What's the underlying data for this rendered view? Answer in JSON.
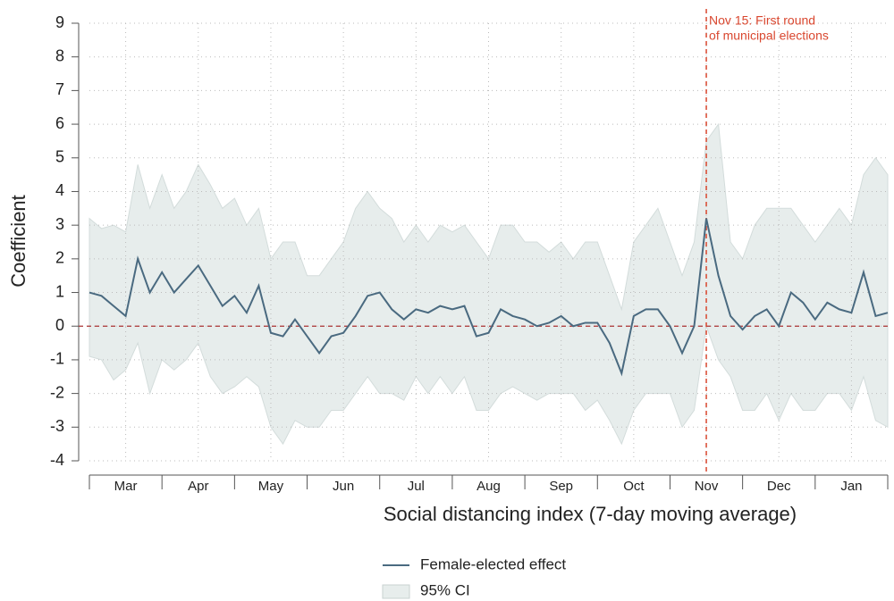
{
  "chart_data": {
    "type": "line",
    "xlabel": "Social distancing index (7-day moving average)",
    "ylabel": "Coefficient",
    "categories": [
      "Mar",
      "Apr",
      "May",
      "Jun",
      "Jul",
      "Aug",
      "Sep",
      "Oct",
      "Nov",
      "Dec",
      "Jan"
    ],
    "xlim": [
      0,
      11
    ],
    "x": [
      0,
      0.167,
      0.333,
      0.5,
      0.667,
      0.833,
      1,
      1.167,
      1.333,
      1.5,
      1.667,
      1.833,
      2,
      2.167,
      2.333,
      2.5,
      2.667,
      2.833,
      3,
      3.167,
      3.333,
      3.5,
      3.667,
      3.833,
      4,
      4.167,
      4.333,
      4.5,
      4.667,
      4.833,
      5,
      5.167,
      5.333,
      5.5,
      5.667,
      5.833,
      6,
      6.167,
      6.333,
      6.5,
      6.667,
      6.833,
      7,
      7.167,
      7.333,
      7.5,
      7.667,
      7.833,
      8,
      8.167,
      8.333,
      8.5,
      8.667,
      8.833,
      9,
      9.167,
      9.333,
      9.5,
      9.667,
      9.833,
      10,
      10.167,
      10.333,
      10.5,
      10.667,
      10.833,
      11
    ],
    "series": [
      {
        "name": "Female-elected effect",
        "color": "#4a6a80",
        "values": [
          1.0,
          0.9,
          0.6,
          0.3,
          2.0,
          1.0,
          1.6,
          1.0,
          1.4,
          1.8,
          1.2,
          0.6,
          0.9,
          0.4,
          1.2,
          -0.2,
          -0.3,
          0.2,
          -0.3,
          -0.8,
          -0.3,
          -0.2,
          0.3,
          0.9,
          1.0,
          0.5,
          0.2,
          0.5,
          0.4,
          0.6,
          0.5,
          0.6,
          -0.3,
          -0.2,
          0.5,
          0.3,
          0.2,
          0.0,
          0.1,
          0.3,
          0.0,
          0.1,
          0.1,
          -0.5,
          -1.4,
          0.3,
          0.5,
          0.5,
          0.0,
          -0.8,
          0.0,
          3.2,
          1.5,
          0.3,
          -0.1,
          0.3,
          0.5,
          0.0,
          1.0,
          0.7,
          0.2,
          0.7,
          0.5,
          0.4,
          1.6,
          0.3,
          0.4
        ]
      }
    ],
    "band": {
      "name": "95% CI",
      "color": "#e7edec",
      "lower": [
        -0.9,
        -1.0,
        -1.6,
        -1.3,
        -0.5,
        -2.0,
        -1.0,
        -1.3,
        -1.0,
        -0.5,
        -1.5,
        -2.0,
        -1.8,
        -1.5,
        -1.8,
        -3.0,
        -3.5,
        -2.8,
        -3.0,
        -3.0,
        -2.5,
        -2.5,
        -2.0,
        -1.5,
        -2.0,
        -2.0,
        -2.2,
        -1.5,
        -2.0,
        -1.5,
        -2.0,
        -1.5,
        -2.5,
        -2.5,
        -2.0,
        -1.8,
        -2.0,
        -2.2,
        -2.0,
        -2.0,
        -2.0,
        -2.5,
        -2.2,
        -2.8,
        -3.5,
        -2.5,
        -2.0,
        -2.0,
        -2.0,
        -3.0,
        -2.5,
        0.0,
        -1.0,
        -1.5,
        -2.5,
        -2.5,
        -2.0,
        -2.8,
        -2.0,
        -2.5,
        -2.5,
        -2.0,
        -2.0,
        -2.5,
        -1.5,
        -2.8,
        -3.0
      ],
      "upper": [
        3.2,
        2.9,
        3.0,
        2.8,
        4.8,
        3.5,
        4.5,
        3.5,
        4.0,
        4.8,
        4.2,
        3.5,
        3.8,
        3.0,
        3.5,
        2.0,
        2.5,
        2.5,
        1.5,
        1.5,
        2.0,
        2.5,
        3.5,
        4.0,
        3.5,
        3.2,
        2.5,
        3.0,
        2.5,
        3.0,
        2.8,
        3.0,
        2.5,
        2.0,
        3.0,
        3.0,
        2.5,
        2.5,
        2.2,
        2.5,
        2.0,
        2.5,
        2.5,
        1.5,
        0.5,
        2.5,
        3.0,
        3.5,
        2.5,
        1.5,
        2.5,
        5.5,
        6.0,
        2.5,
        2.0,
        3.0,
        3.5,
        3.5,
        3.5,
        3.0,
        2.5,
        3.0,
        3.5,
        3.0,
        4.5,
        5.0,
        4.5
      ]
    },
    "ylim": [
      -4,
      9
    ],
    "yticks": [
      -4,
      -3,
      -2,
      -1,
      0,
      1,
      2,
      3,
      4,
      5,
      6,
      7,
      8,
      9
    ],
    "grid": true,
    "hline": 0,
    "annotation": {
      "lines": [
        "Nov 15: First round",
        "of municipal elections"
      ],
      "x": 8.5,
      "color": "#d9472f"
    }
  }
}
